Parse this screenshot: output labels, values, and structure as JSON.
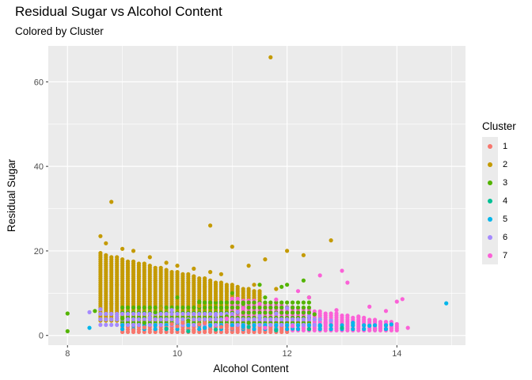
{
  "chart_data": {
    "type": "scatter",
    "title": "Residual Sugar vs Alcohol Content",
    "subtitle": "Colored by Cluster",
    "xlabel": "Alcohol Content",
    "ylabel": "Residual Sugar",
    "xlim": [
      7.65,
      15.25
    ],
    "ylim": [
      -2.3,
      68.5
    ],
    "x_ticks": [
      8,
      10,
      12,
      14
    ],
    "y_ticks": [
      0,
      20,
      40,
      60
    ],
    "grid": true,
    "legend_title": "Cluster",
    "legend_position": "right",
    "series": [
      {
        "name": "1",
        "color": "#F8766D",
        "points": [
          [
            9.6,
            1.2
          ],
          [
            9.8,
            1.8
          ],
          [
            10.0,
            2.2
          ],
          [
            10.2,
            1.5
          ],
          [
            10.4,
            2.6
          ],
          [
            10.6,
            1.4
          ],
          [
            10.8,
            2.0
          ],
          [
            11.0,
            1.6
          ],
          [
            9.4,
            1.9
          ],
          [
            9.2,
            1.3
          ],
          [
            10.1,
            3.0
          ],
          [
            10.5,
            2.9
          ],
          [
            10.9,
            2.4
          ],
          [
            11.2,
            1.8
          ],
          [
            9.9,
            2.7
          ],
          [
            10.3,
            1.1
          ]
        ]
      },
      {
        "name": "2",
        "color": "#C49A00",
        "points": [
          [
            11.7,
            65.8
          ],
          [
            8.8,
            31.6
          ],
          [
            10.6,
            26.0
          ],
          [
            12.8,
            22.5
          ],
          [
            8.6,
            23.5
          ],
          [
            8.7,
            21.8
          ],
          [
            9.0,
            20.5
          ],
          [
            9.2,
            20.0
          ],
          [
            9.5,
            18.5
          ],
          [
            9.8,
            17.2
          ],
          [
            10.0,
            16.5
          ],
          [
            10.3,
            15.8
          ],
          [
            10.6,
            15.0
          ],
          [
            10.8,
            14.5
          ],
          [
            11.0,
            21.0
          ],
          [
            11.6,
            18.0
          ],
          [
            12.0,
            20.0
          ],
          [
            12.3,
            19.0
          ],
          [
            11.3,
            16.5
          ],
          [
            9.1,
            16.0
          ],
          [
            9.3,
            14.0
          ],
          [
            9.6,
            13.0
          ],
          [
            8.9,
            12.0
          ],
          [
            9.4,
            11.0
          ],
          [
            10.2,
            12.5
          ],
          [
            10.5,
            11.5
          ],
          [
            10.9,
            10.5
          ],
          [
            11.4,
            12.0
          ],
          [
            11.8,
            11.0
          ],
          [
            9.0,
            9.0
          ],
          [
            9.5,
            8.0
          ],
          [
            10.1,
            9.5
          ],
          [
            10.7,
            8.5
          ],
          [
            8.8,
            7.5
          ],
          [
            9.7,
            6.5
          ],
          [
            10.4,
            7.0
          ]
        ]
      },
      {
        "name": "3",
        "color": "#53B400",
        "points": [
          [
            8.0,
            5.2
          ],
          [
            8.0,
            1.0
          ],
          [
            8.5,
            5.8
          ],
          [
            9.0,
            4.0
          ],
          [
            9.6,
            5.5
          ],
          [
            10.0,
            9.0
          ],
          [
            10.4,
            8.0
          ],
          [
            10.8,
            6.5
          ],
          [
            11.2,
            7.5
          ],
          [
            11.6,
            9.0
          ],
          [
            12.0,
            12.0
          ],
          [
            12.3,
            13.0
          ],
          [
            11.9,
            11.5
          ],
          [
            11.5,
            12.0
          ],
          [
            11.0,
            10.0
          ],
          [
            9.4,
            3.0
          ],
          [
            10.2,
            3.5
          ],
          [
            10.9,
            4.5
          ],
          [
            12.5,
            5.0
          ],
          [
            11.3,
            3.0
          ]
        ]
      },
      {
        "name": "4",
        "color": "#00C094",
        "points": [
          [
            10.2,
            1.0
          ],
          [
            10.7,
            1.4
          ],
          [
            11.3,
            2.0
          ],
          [
            11.8,
            1.2
          ],
          [
            12.4,
            1.5
          ],
          [
            9.8,
            1.6
          ],
          [
            13.0,
            1.8
          ]
        ]
      },
      {
        "name": "5",
        "color": "#00B6EB",
        "points": [
          [
            14.9,
            7.6
          ],
          [
            8.4,
            1.8
          ],
          [
            13.5,
            2.3
          ],
          [
            13.9,
            2.6
          ],
          [
            12.6,
            2.2
          ],
          [
            11.2,
            2.0
          ],
          [
            10.5,
            1.8
          ],
          [
            12.1,
            1.6
          ],
          [
            13.2,
            3.0
          ],
          [
            9.6,
            1.5
          ]
        ]
      },
      {
        "name": "6",
        "color": "#A58AFF",
        "points": [
          [
            8.4,
            5.5
          ],
          [
            8.6,
            6.2
          ],
          [
            8.9,
            4.5
          ],
          [
            9.1,
            3.8
          ],
          [
            9.5,
            4.2
          ],
          [
            9.9,
            6.0
          ],
          [
            10.3,
            5.0
          ],
          [
            10.7,
            4.8
          ],
          [
            11.1,
            5.5
          ],
          [
            11.5,
            4.6
          ],
          [
            12.0,
            6.5
          ],
          [
            12.4,
            4.5
          ],
          [
            11.8,
            5.2
          ],
          [
            10.0,
            3.2
          ],
          [
            9.2,
            2.5
          ],
          [
            12.8,
            3.5
          ]
        ]
      },
      {
        "name": "7",
        "color": "#FB61D7",
        "points": [
          [
            14.2,
            1.8
          ],
          [
            13.0,
            15.3
          ],
          [
            12.6,
            14.2
          ],
          [
            13.1,
            12.5
          ],
          [
            14.0,
            8.0
          ],
          [
            14.1,
            8.6
          ],
          [
            13.5,
            6.8
          ],
          [
            13.8,
            5.8
          ],
          [
            12.4,
            9.0
          ],
          [
            12.2,
            10.5
          ],
          [
            11.8,
            8.5
          ],
          [
            11.5,
            7.5
          ],
          [
            11.2,
            6.5
          ],
          [
            10.9,
            4.0
          ],
          [
            12.9,
            6.0
          ],
          [
            13.3,
            4.5
          ],
          [
            12.7,
            3.0
          ],
          [
            12.1,
            2.2
          ],
          [
            11.6,
            1.8
          ],
          [
            13.6,
            1.5
          ]
        ]
      }
    ],
    "dense_bands": [
      {
        "series": "2",
        "x_start": 8.6,
        "x_end": 11.5,
        "x_step": 0.1,
        "y_min": 3.5,
        "y_max_start": 19.5,
        "y_max_end": 10.5,
        "y_step": 0.5
      },
      {
        "series": "7",
        "x_start": 11.0,
        "x_end": 14.0,
        "x_step": 0.1,
        "y_min": 1.2,
        "y_max_start": 9.0,
        "y_max_end": 3.0,
        "y_step": 0.5
      },
      {
        "series": "1",
        "x_start": 9.0,
        "x_end": 12.0,
        "x_step": 0.1,
        "y_min": 0.8,
        "y_max_start": 3.0,
        "y_max_end": 2.0,
        "y_step": 0.6
      },
      {
        "series": "3",
        "x_start": 9.0,
        "x_end": 12.4,
        "x_step": 0.1,
        "y_min": 3.0,
        "y_max_start": 7.0,
        "y_max_end": 9.0,
        "y_step": 1.2
      },
      {
        "series": "6",
        "x_start": 8.6,
        "x_end": 12.6,
        "x_step": 0.1,
        "y_min": 2.5,
        "y_max_start": 6.0,
        "y_max_end": 4.5,
        "y_step": 1.3
      },
      {
        "series": "5",
        "x_start": 9.0,
        "x_end": 13.8,
        "x_step": 0.2,
        "y_min": 1.5,
        "y_max_start": 2.8,
        "y_max_end": 2.8,
        "y_step": 0.9
      }
    ]
  }
}
